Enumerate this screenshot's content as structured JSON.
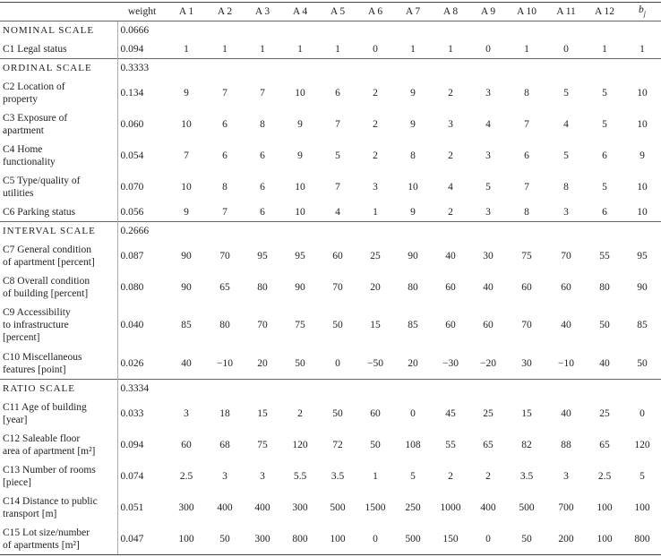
{
  "header": {
    "weight": "weight",
    "alternatives": [
      "A 1",
      "A 2",
      "A 3",
      "A 4",
      "A 5",
      "A 6",
      "A 7",
      "A 8",
      "A 9",
      "A 10",
      "A 11",
      "A 12"
    ],
    "last_base": "b",
    "last_sub": "j"
  },
  "sections": [
    {
      "name": "NOMINAL SCALE",
      "weight": "0.0666",
      "rows": [
        {
          "lines": [
            "C1 Legal status"
          ],
          "weight": "0.094",
          "values": [
            "1",
            "1",
            "1",
            "1",
            "1",
            "0",
            "1",
            "1",
            "0",
            "1",
            "0",
            "1",
            "1"
          ]
        }
      ]
    },
    {
      "name": "ORDINAL SCALE",
      "weight": "0.3333",
      "rows": [
        {
          "lines": [
            "C2 Location of",
            "property"
          ],
          "weight": "0.134",
          "values": [
            "9",
            "7",
            "7",
            "10",
            "6",
            "2",
            "9",
            "2",
            "3",
            "8",
            "5",
            "5",
            "10"
          ]
        },
        {
          "lines": [
            "C3 Exposure of",
            "apartment"
          ],
          "weight": "0.060",
          "values": [
            "10",
            "6",
            "8",
            "9",
            "7",
            "2",
            "9",
            "3",
            "4",
            "7",
            "4",
            "5",
            "10"
          ]
        },
        {
          "lines": [
            "C4 Home",
            "functionality"
          ],
          "weight": "0.054",
          "values": [
            "7",
            "6",
            "6",
            "9",
            "5",
            "2",
            "8",
            "2",
            "3",
            "6",
            "5",
            "6",
            "9"
          ]
        },
        {
          "lines": [
            "C5 Type/quality of",
            "utilities"
          ],
          "weight": "0.070",
          "values": [
            "10",
            "8",
            "6",
            "10",
            "7",
            "3",
            "10",
            "4",
            "5",
            "7",
            "8",
            "5",
            "10"
          ]
        },
        {
          "lines": [
            "C6 Parking status"
          ],
          "weight": "0.056",
          "values": [
            "9",
            "7",
            "6",
            "10",
            "4",
            "1",
            "9",
            "2",
            "3",
            "8",
            "3",
            "6",
            "10"
          ]
        }
      ]
    },
    {
      "name": "INTERVAL SCALE",
      "weight": "0.2666",
      "rows": [
        {
          "lines": [
            "C7 General condition",
            "of apartment [percent]"
          ],
          "weight": "0.087",
          "values": [
            "90",
            "70",
            "95",
            "95",
            "60",
            "25",
            "90",
            "40",
            "30",
            "75",
            "70",
            "55",
            "95"
          ]
        },
        {
          "lines": [
            "C8 Overall condition",
            "of building [percent]"
          ],
          "weight": "0.080",
          "values": [
            "90",
            "65",
            "80",
            "90",
            "70",
            "20",
            "80",
            "60",
            "40",
            "60",
            "60",
            "80",
            "90"
          ]
        },
        {
          "lines": [
            "C9 Accessibility",
            "to infrastructure",
            "[percent]"
          ],
          "weight": "0.040",
          "values": [
            "85",
            "80",
            "70",
            "75",
            "50",
            "15",
            "85",
            "60",
            "60",
            "70",
            "40",
            "50",
            "85"
          ]
        },
        {
          "lines": [
            "C10 Miscellaneous",
            "features [point]"
          ],
          "weight": "0.026",
          "values": [
            "40",
            "−10",
            "20",
            "50",
            "0",
            "−50",
            "20",
            "−30",
            "−20",
            "30",
            "−10",
            "40",
            "50"
          ]
        }
      ]
    },
    {
      "name": "RATIO SCALE",
      "weight": "0.3334",
      "rows": [
        {
          "lines": [
            "C11 Age of building",
            "[year]"
          ],
          "weight": "0.033",
          "values": [
            "3",
            "18",
            "15",
            "2",
            "50",
            "60",
            "0",
            "45",
            "25",
            "15",
            "40",
            "25",
            "0"
          ]
        },
        {
          "lines": [
            "C12 Saleable floor",
            "area of apartment [m²]"
          ],
          "weight": "0.094",
          "values": [
            "60",
            "68",
            "75",
            "120",
            "72",
            "50",
            "108",
            "55",
            "65",
            "82",
            "88",
            "65",
            "120"
          ]
        },
        {
          "lines": [
            "C13 Number of rooms",
            "[piece]"
          ],
          "weight": "0.074",
          "values": [
            "2.5",
            "3",
            "3",
            "5.5",
            "3.5",
            "1",
            "5",
            "2",
            "2",
            "3.5",
            "3",
            "2.5",
            "5"
          ]
        },
        {
          "lines": [
            "C14 Distance to public",
            "transport [m]"
          ],
          "weight": "0.051",
          "values": [
            "300",
            "400",
            "400",
            "300",
            "500",
            "1500",
            "250",
            "1000",
            "400",
            "500",
            "700",
            "100",
            "100"
          ]
        },
        {
          "lines": [
            "C15 Lot size/number",
            "of apartments [m²]"
          ],
          "weight": "0.047",
          "values": [
            "100",
            "50",
            "300",
            "800",
            "100",
            "0",
            "500",
            "150",
            "0",
            "50",
            "200",
            "100",
            "800"
          ]
        }
      ]
    }
  ]
}
